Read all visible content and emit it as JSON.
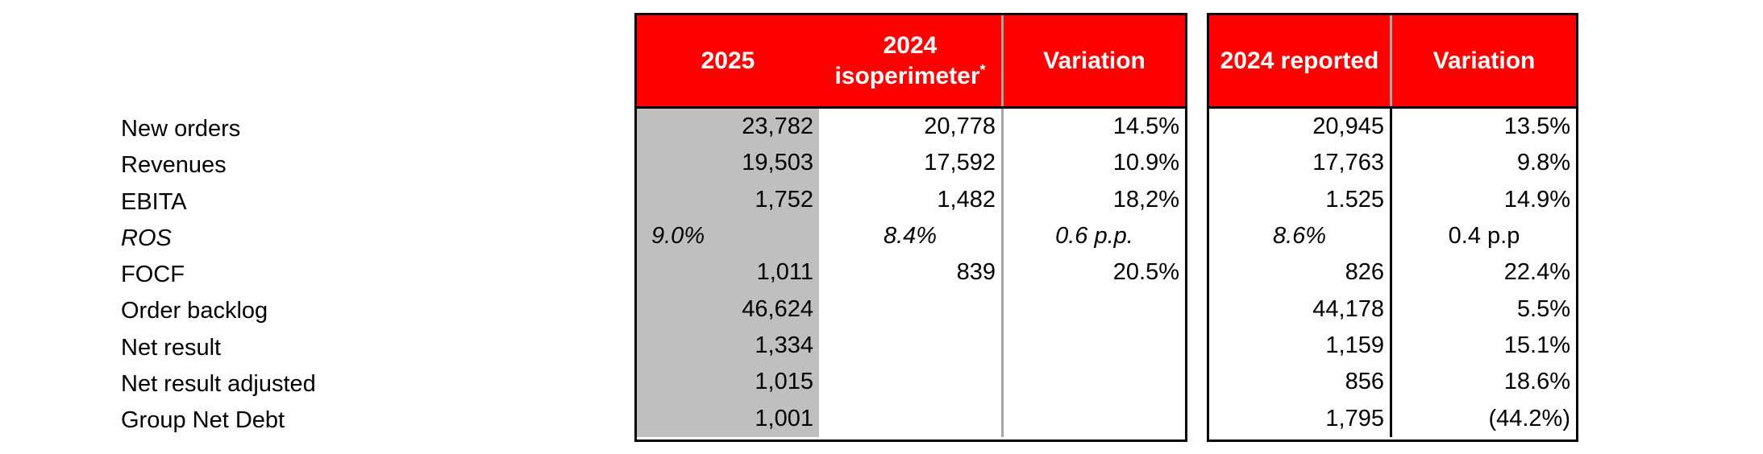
{
  "colors": {
    "header_red": "#ff0000",
    "col_2025_gray": "#bfbfbf",
    "divider_gray": "#a6a6a6",
    "border_black": "#000000",
    "header_text_white": "#ffffff"
  },
  "table1": {
    "header": {
      "col1": "2025",
      "col2_line1": "2024",
      "col2_line2": "isoperimeter",
      "col2_superscript": "*",
      "col3": "Variation"
    }
  },
  "table2": {
    "header": {
      "col1": "2024 reported",
      "col2": "Variation"
    }
  },
  "rows": [
    {
      "label": "New orders",
      "v2025": "23,782",
      "iso2024": "20,778",
      "var1": "14.5%",
      "rep2024": "20,945",
      "var2": "13.5%"
    },
    {
      "label": "Revenues",
      "v2025": "19,503",
      "iso2024": "17,592",
      "var1": "10.9%",
      "rep2024": "17,763",
      "var2": "9.8%"
    },
    {
      "label": "EBITA",
      "v2025": "1,752",
      "iso2024": "1,482",
      "var1": "18,2%",
      "rep2024": "1.525",
      "var2": "14.9%"
    },
    {
      "label": "ROS",
      "v2025": "9.0%",
      "iso2024": "8.4%",
      "var1": "0.6 p.p.",
      "rep2024": "8.6%",
      "var2": "0.4 p.p"
    },
    {
      "label": "FOCF",
      "v2025": "1,011",
      "iso2024": "839",
      "var1": "20.5%",
      "rep2024": "826",
      "var2": "22.4%"
    },
    {
      "label": "Order backlog",
      "v2025": "46,624",
      "iso2024": "",
      "var1": "",
      "rep2024": "44,178",
      "var2": "5.5%"
    },
    {
      "label": "Net result",
      "v2025": "1,334",
      "iso2024": "",
      "var1": "",
      "rep2024": "1,159",
      "var2": "15.1%"
    },
    {
      "label": "Net result adjusted",
      "v2025": "1,015",
      "iso2024": "",
      "var1": "",
      "rep2024": "856",
      "var2": "18.6%"
    },
    {
      "label": "Group Net Debt",
      "v2025": "1,001",
      "iso2024": "",
      "var1": "",
      "rep2024": "1,795",
      "var2": "(44.2%)"
    }
  ]
}
